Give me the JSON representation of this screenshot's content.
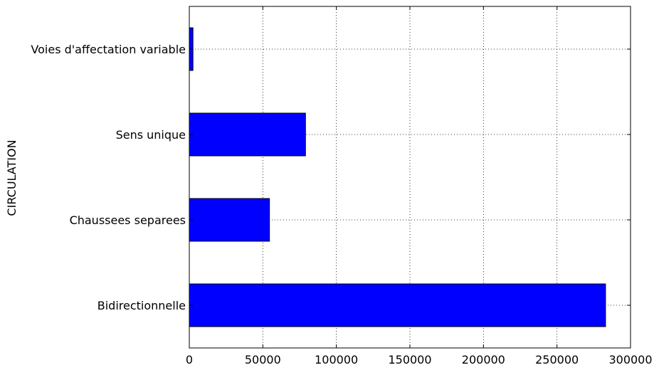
{
  "chart_data": {
    "type": "bar",
    "orientation": "horizontal",
    "categories": [
      "Bidirectionnelle",
      "Chaussees separees",
      "Sens unique",
      "Voies d'affectation variable"
    ],
    "values": [
      283000,
      54500,
      79000,
      2500
    ],
    "title": "",
    "xlabel": "",
    "ylabel": "CIRCULATION",
    "xlim": [
      0,
      300000
    ],
    "xticks": [
      0,
      50000,
      100000,
      150000,
      200000,
      250000,
      300000
    ],
    "xtick_labels": [
      "0",
      "50000",
      "100000",
      "150000",
      "200000",
      "250000",
      "300000"
    ],
    "grid": true,
    "bar_color": "#0000ff",
    "edge_color": "#000000"
  }
}
